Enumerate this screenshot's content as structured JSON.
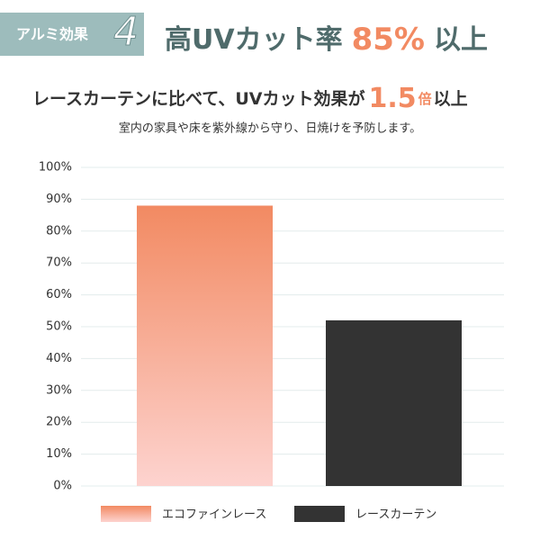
{
  "header": {
    "badge": "アルミ効果",
    "badge_number": "4",
    "headline": "高UVカット率",
    "headline_highlight": "85%",
    "headline_suffix": "以上",
    "subtitle": "レースカーテンに比べて、UVカット効果が",
    "subtitle_highlight": "1.5",
    "subtitle_unit": "倍",
    "subtitle_suffix": "以上",
    "description": "室内の家具や床を紫外線から守り、日焼けを予防します。"
  },
  "chart_data": {
    "type": "bar",
    "categories": [
      null
    ],
    "series": [
      {
        "name": "エコファインレース",
        "color": "#f28a62",
        "gradient_to": "#fdd3cf",
        "values": [
          88
        ]
      },
      {
        "name": "レースカーテン",
        "color": "#333333",
        "values": [
          52
        ]
      }
    ],
    "ylim": [
      0,
      100
    ],
    "yticks": [
      {
        "value": 0,
        "label": "0%"
      },
      {
        "value": 10,
        "label": "10%"
      },
      {
        "value": 20,
        "label": "20%"
      },
      {
        "value": 30,
        "label": "30%"
      },
      {
        "value": 40,
        "label": "40%"
      },
      {
        "value": 50,
        "label": "50%"
      },
      {
        "value": 60,
        "label": "60%"
      },
      {
        "value": 70,
        "label": "70%"
      },
      {
        "value": 80,
        "label": "80%"
      },
      {
        "value": 90,
        "label": "90%"
      },
      {
        "value": 100,
        "label": "100%"
      }
    ],
    "grid": true
  }
}
